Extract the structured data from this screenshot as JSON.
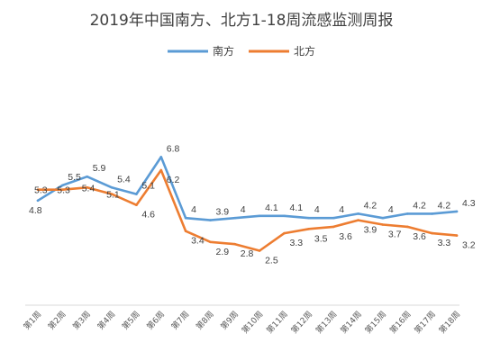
{
  "chart_data": {
    "type": "line",
    "title": "2019年中国南方、北方1-18周流感监测周报",
    "categories": [
      "第1周",
      "第2周",
      "第3周",
      "第4周",
      "第5周",
      "第6周",
      "第7周",
      "第8周",
      "第9周",
      "第10周",
      "第11周",
      "第12周",
      "第13周",
      "第14周",
      "第15周",
      "第16周",
      "第17周",
      "第18周"
    ],
    "series": [
      {
        "name": "南方",
        "color": "#5b9bd5",
        "values": [
          4.8,
          5.5,
          5.9,
          5.4,
          5.1,
          6.8,
          4.0,
          3.9,
          4.0,
          4.1,
          4.1,
          4.0,
          4.0,
          4.2,
          4.0,
          4.2,
          4.2,
          4.3
        ],
        "labels": [
          "4.8",
          "5.5",
          "5.9",
          "5.4",
          "5.1",
          "6.8",
          "4",
          "3.9",
          "4",
          "4.1",
          "4.1",
          "4",
          "4",
          "4.2",
          "4",
          "4.2",
          "4.2",
          "4.3"
        ]
      },
      {
        "name": "北方",
        "color": "#ed7d31",
        "values": [
          5.3,
          5.3,
          5.4,
          5.1,
          4.6,
          6.2,
          3.4,
          2.9,
          2.8,
          2.5,
          3.3,
          3.5,
          3.6,
          3.9,
          3.7,
          3.6,
          3.3,
          3.2
        ],
        "labels": [
          "5.3",
          "5.3",
          "5.4",
          "5.1",
          "4.6",
          "6.2",
          "3.4",
          "2.9",
          "2.8",
          "2.5",
          "3.3",
          "3.5",
          "3.6",
          "3.9",
          "3.7",
          "3.6",
          "3.3",
          "3.2"
        ]
      }
    ],
    "legend_position": "top",
    "grid": false,
    "ylim": [
      0,
      9.3
    ]
  }
}
